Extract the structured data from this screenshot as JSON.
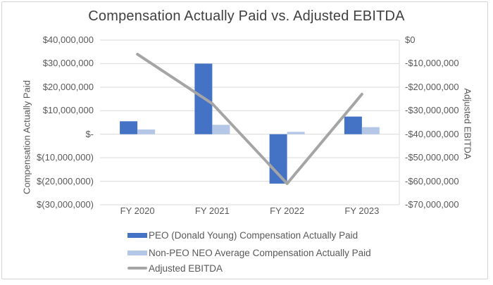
{
  "frame": {
    "border_color": "#d3d3d3",
    "background": "#ffffff"
  },
  "chart_data": {
    "type": "combo (clustered bar + line, dual axis)",
    "title": "Compensation Actually Paid vs. Adjusted EBITDA",
    "categories": [
      "FY 2020",
      "FY 2021",
      "FY 2022",
      "FY 2023"
    ],
    "series": [
      {
        "name": "PEO (Donald Young) Compensation Actually Paid",
        "type": "bar",
        "axis": "left",
        "color": "#4472C4",
        "values": [
          5500000,
          30000000,
          -21000000,
          7500000
        ]
      },
      {
        "name": "Non-PEO NEO Average Compensation Actually Paid",
        "type": "bar",
        "axis": "left",
        "color": "#B4C7E7",
        "values": [
          2000000,
          4000000,
          1000000,
          3000000
        ]
      },
      {
        "name": "Adjusted EBITDA",
        "type": "line",
        "axis": "right",
        "color": "#A5A5A5",
        "values": [
          -6000000,
          -27000000,
          -61000000,
          -23000000
        ]
      }
    ],
    "left_axis": {
      "title": "Compensation Actually Paid",
      "max": 40000000,
      "min": -30000000,
      "tick_labels": [
        "$40,000,000",
        "$30,000,000",
        "$20,000,000",
        "$10,000,000",
        "$-",
        "$(10,000,000)",
        "$(20,000,000)",
        "$(30,000,000)"
      ]
    },
    "right_axis": {
      "title": "Adjusted EBITDA",
      "max": 0,
      "min": -70000000,
      "tick_labels": [
        "$0",
        "-$10,000,000",
        "-$20,000,000",
        "-$30,000,000",
        "-$40,000,000",
        "-$50,000,000",
        "-$60,000,000",
        "-$70,000,000"
      ]
    },
    "grid": {
      "horizontal": true,
      "color": "#D9D9D9"
    },
    "legend_position": "bottom-left"
  }
}
